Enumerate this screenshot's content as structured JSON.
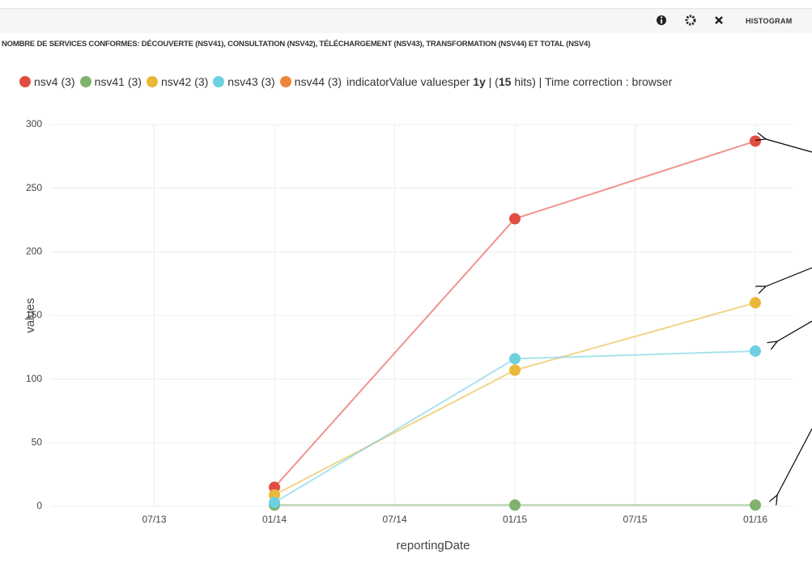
{
  "panel_type": "HISTOGRAM",
  "chart_data": {
    "type": "line",
    "title": "NOMBRE DE SERVICES CONFORMES: DÉCOUVERTE (NSV41), CONSULTATION (NSV42), TÉLÉCHARGEMENT (NSV43), TRANSFORMATION (NSV44) ET TOTAL (NSV4)",
    "legend_info": {
      "field": "indicatorValue valuesper",
      "interval": "1y",
      "hits_open": "| (",
      "hits": 15,
      "hits_close": "hits) | Time correction : browser"
    },
    "x_label": "reportingDate",
    "y_label": "values",
    "x": [
      "01/14",
      "01/15",
      "01/16"
    ],
    "xticks": [
      "07/13",
      "01/14",
      "07/14",
      "01/15",
      "07/15",
      "01/16"
    ],
    "ylim": [
      0,
      300
    ],
    "yticks": [
      0,
      50,
      100,
      150,
      200,
      250,
      300
    ],
    "grid": true,
    "series": [
      {
        "name": "nsv4 (3)",
        "color": "#e24d42",
        "values": [
          15,
          226,
          287
        ]
      },
      {
        "name": "nsv41 (3)",
        "color": "#7eb26d",
        "values": [
          1,
          1,
          1
        ]
      },
      {
        "name": "nsv42 (3)",
        "color": "#eab839",
        "values": [
          9,
          107,
          160
        ]
      },
      {
        "name": "nsv43 (3)",
        "color": "#6ed0e0",
        "values": [
          3,
          116,
          122
        ]
      },
      {
        "name": "nsv44 (3)",
        "color": "#ef843c",
        "values": [
          null,
          null,
          null
        ]
      }
    ]
  }
}
